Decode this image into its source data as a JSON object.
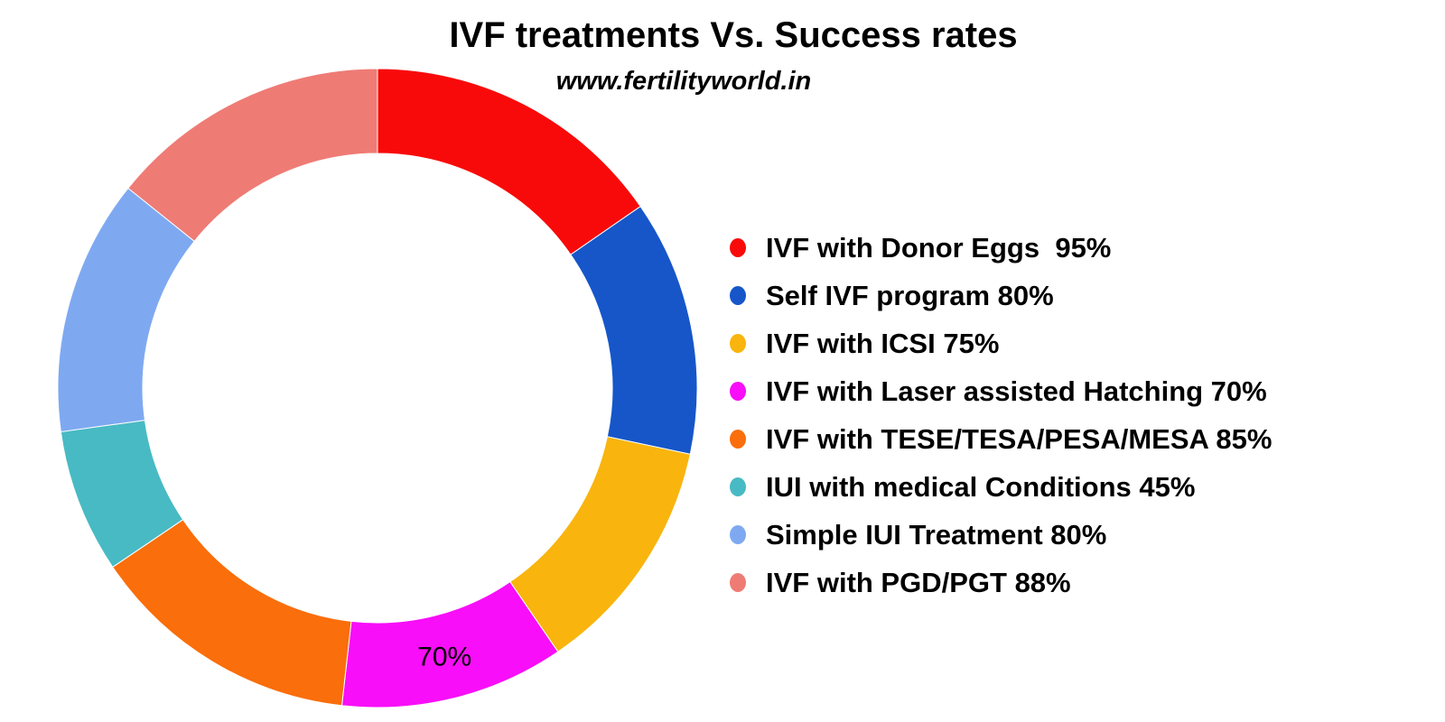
{
  "header": {
    "title": "IVF treatments Vs. Success rates",
    "subtitle": "www.fertilityworld.in"
  },
  "chart_data": {
    "type": "pie",
    "subtype": "donut",
    "title": "IVF treatments Vs. Success rates",
    "subtitle": "www.fertilityworld.in",
    "unit": "%",
    "start_angle_deg": 0,
    "direction": "clockwise",
    "legend_position": "right",
    "categories": [
      "IVF with Donor Eggs",
      "Self IVF program",
      "IVF with ICSI",
      "IVF with Laser assisted Hatching",
      "IVF with TESE/TESA/PESA/MESA",
      "IUI with medical Conditions",
      "Simple IUI Treatment",
      "IVF with PGD/PGT"
    ],
    "values": [
      95,
      80,
      75,
      70,
      85,
      45,
      80,
      88
    ],
    "colors": [
      "#F90A0A",
      "#1656C9",
      "#F9B40D",
      "#F80EF8",
      "#FA6E0B",
      "#48BAC4",
      "#7EA9F1",
      "#EF7B75"
    ],
    "legend_labels": [
      "IVF with Donor Eggs  95%",
      "Self IVF program 80%",
      "IVF with ICSI 75%",
      "IVF with Laser assisted Hatching 70%",
      "IVF with TESE/TESA/PESA/MESA 85%",
      "IUI with medical Conditions 45%",
      "Simple IUI Treatment 80%",
      "IVF with PGD/PGT 88%"
    ],
    "slice_labels": [
      {
        "slice_index": 3,
        "text": "70%"
      }
    ]
  }
}
